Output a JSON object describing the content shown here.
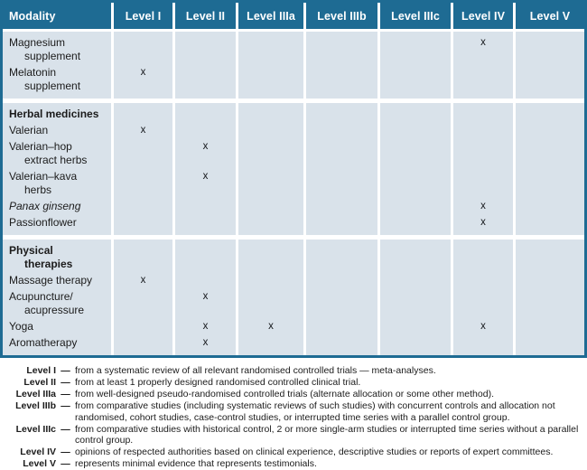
{
  "colors": {
    "header_bg": "#1e6b93",
    "border": "#1e6b93",
    "cell_bg": "#d9e2ea",
    "header_text": "#ffffff",
    "body_text": "#1b1b1b"
  },
  "table": {
    "mark": "x",
    "columns": [
      "Modality",
      "Level I",
      "Level II",
      "Level IIIa",
      "Level IIIb",
      "Level IIIc",
      "Level IV",
      "Level V"
    ],
    "groups": [
      {
        "rows": [
          {
            "label_lines": [
              "Magnesium",
              "supplement"
            ],
            "style": "normal",
            "marks": [
              "Level IV"
            ]
          },
          {
            "label_lines": [
              "Melatonin",
              "supplement"
            ],
            "style": "normal",
            "marks": [
              "Level I"
            ]
          }
        ]
      },
      {
        "rows": [
          {
            "label_lines": [
              "Herbal medicines"
            ],
            "style": "bold",
            "marks": []
          },
          {
            "label_lines": [
              "Valerian"
            ],
            "style": "normal",
            "marks": [
              "Level I"
            ]
          },
          {
            "label_lines": [
              "Valerian–hop",
              "extract herbs"
            ],
            "style": "normal",
            "marks": [
              "Level II"
            ]
          },
          {
            "label_lines": [
              "Valerian–kava",
              "herbs"
            ],
            "style": "normal",
            "marks": [
              "Level II"
            ]
          },
          {
            "label_lines": [
              "Panax ginseng"
            ],
            "style": "italic",
            "marks": [
              "Level IV"
            ]
          },
          {
            "label_lines": [
              "Passionflower"
            ],
            "style": "normal",
            "marks": [
              "Level IV"
            ]
          }
        ]
      },
      {
        "rows": [
          {
            "label_lines": [
              "Physical",
              "therapies"
            ],
            "style": "bold",
            "marks": []
          },
          {
            "label_lines": [
              "Massage therapy"
            ],
            "style": "normal",
            "marks": [
              "Level I"
            ]
          },
          {
            "label_lines": [
              "Acupuncture/",
              "acupressure"
            ],
            "style": "normal",
            "marks": [
              "Level II"
            ]
          },
          {
            "label_lines": [
              "Yoga"
            ],
            "style": "normal",
            "marks": [
              "Level II",
              "Level IIIa",
              "Level IV"
            ]
          },
          {
            "label_lines": [
              "Aromatherapy"
            ],
            "style": "normal",
            "marks": [
              "Level II"
            ]
          }
        ]
      }
    ]
  },
  "legend": {
    "dash": "—",
    "entries": [
      {
        "label": "Level I",
        "text": "from a systematic review of all relevant randomised controlled trials — meta-analyses."
      },
      {
        "label": "Level II",
        "text": "from at least 1 properly designed randomised controlled clinical trial."
      },
      {
        "label": "Level IIIa",
        "text": "from well-designed pseudo-randomised controlled trials (alternate allocation or some other method)."
      },
      {
        "label": "Level IIIb",
        "text": "from comparative studies (including systematic reviews of such studies) with concurrent controls and allocation not randomised, cohort studies, case-control studies, or interrupted time series with a parallel control group."
      },
      {
        "label": "Level IIIc",
        "text": "from comparative studies with historical control, 2 or more single-arm studies or interrupted time series without a parallel control group."
      },
      {
        "label": "Level IV",
        "text": "opinions of respected authorities based on clinical experience, descriptive studies or reports of expert committees."
      },
      {
        "label": "Level V",
        "text": "represents minimal evidence that represents testimonials."
      }
    ]
  }
}
